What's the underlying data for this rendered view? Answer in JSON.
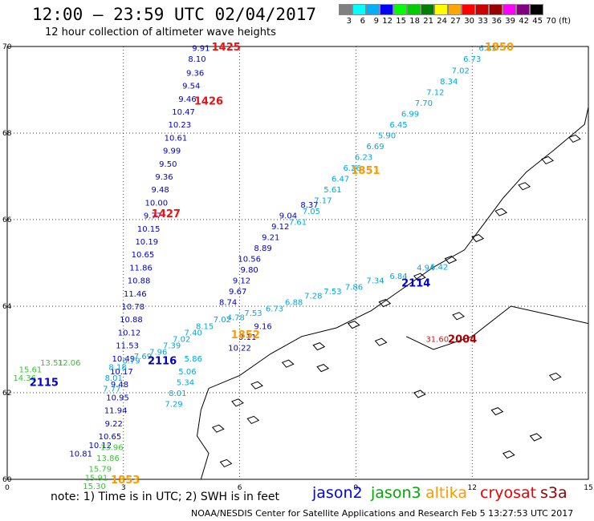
{
  "header": {
    "title": "12:00 – 23:59 UTC 02/04/2017",
    "subtitle": "12 hour collection of altimeter wave heights"
  },
  "colorbar": {
    "colors": [
      "#808080",
      "#00ffff",
      "#00b0ff",
      "#0000ff",
      "#00ff00",
      "#00cc00",
      "#008000",
      "#ffff00",
      "#ffa500",
      "#ff0000",
      "#cc0000",
      "#990000",
      "#ff00ff",
      "#800080",
      "#000000"
    ],
    "labels": [
      "3",
      "6",
      "9",
      "12",
      "15",
      "18",
      "21",
      "24",
      "27",
      "30",
      "33",
      "36",
      "39",
      "42",
      "45",
      "70"
    ],
    "unit": "(ft)"
  },
  "axes": {
    "lon_ticks": [
      "0",
      "3",
      "6",
      "9",
      "12",
      "15"
    ],
    "lat_ticks": [
      "60",
      "62",
      "64",
      "66",
      "68",
      "70"
    ]
  },
  "tracks": [
    {
      "color": "#0000cc",
      "points": [
        {
          "lon": 5.0,
          "lat": 69.97,
          "v": "9.91"
        },
        {
          "lon": 4.9,
          "lat": 69.72,
          "v": "8.10"
        },
        {
          "lon": 4.85,
          "lat": 69.4,
          "v": "9.36"
        },
        {
          "lon": 4.75,
          "lat": 69.1,
          "v": "9.54"
        },
        {
          "lon": 4.65,
          "lat": 68.8,
          "v": "9.46"
        },
        {
          "lon": 4.55,
          "lat": 68.5,
          "v": "10.47"
        },
        {
          "lon": 4.45,
          "lat": 68.2,
          "v": "10.23"
        },
        {
          "lon": 4.35,
          "lat": 67.9,
          "v": "10.61"
        },
        {
          "lon": 4.25,
          "lat": 67.6,
          "v": "9.99"
        },
        {
          "lon": 4.15,
          "lat": 67.3,
          "v": "9.50"
        },
        {
          "lon": 4.05,
          "lat": 67.0,
          "v": "9.36"
        },
        {
          "lon": 3.95,
          "lat": 66.7,
          "v": "9.48"
        },
        {
          "lon": 3.85,
          "lat": 66.4,
          "v": "10.00"
        },
        {
          "lon": 3.75,
          "lat": 66.1,
          "v": "9.77"
        },
        {
          "lon": 3.65,
          "lat": 65.8,
          "v": "10.15"
        },
        {
          "lon": 3.6,
          "lat": 65.5,
          "v": "10.19"
        },
        {
          "lon": 3.5,
          "lat": 65.2,
          "v": "10.65"
        },
        {
          "lon": 3.45,
          "lat": 64.9,
          "v": "11.86"
        },
        {
          "lon": 3.4,
          "lat": 64.6,
          "v": "10.88"
        },
        {
          "lon": 3.3,
          "lat": 64.3,
          "v": "11.46"
        },
        {
          "lon": 3.25,
          "lat": 64.0,
          "v": "10.78"
        },
        {
          "lon": 3.2,
          "lat": 63.7,
          "v": "10.88"
        },
        {
          "lon": 3.15,
          "lat": 63.4,
          "v": "10.12"
        },
        {
          "lon": 3.1,
          "lat": 63.1,
          "v": "11.53"
        },
        {
          "lon": 3.0,
          "lat": 62.8,
          "v": "10.49"
        },
        {
          "lon": 2.95,
          "lat": 62.5,
          "v": "10.17"
        },
        {
          "lon": 2.9,
          "lat": 62.2,
          "v": "9.48"
        },
        {
          "lon": 2.85,
          "lat": 61.9,
          "v": "10.95"
        },
        {
          "lon": 2.8,
          "lat": 61.6,
          "v": "11.94"
        },
        {
          "lon": 2.75,
          "lat": 61.3,
          "v": "9.22"
        },
        {
          "lon": 2.65,
          "lat": 61.0,
          "v": "10.65"
        },
        {
          "lon": 2.4,
          "lat": 60.8,
          "v": "10.12"
        },
        {
          "lon": 1.9,
          "lat": 60.6,
          "v": "10.81"
        }
      ]
    },
    {
      "color": "#0000cc",
      "points": [
        {
          "lon": 5.7,
          "lat": 64.1,
          "v": "8.74"
        },
        {
          "lon": 5.95,
          "lat": 64.35,
          "v": "9.67"
        },
        {
          "lon": 6.05,
          "lat": 64.6,
          "v": "9.12"
        },
        {
          "lon": 6.25,
          "lat": 64.85,
          "v": "9.80"
        },
        {
          "lon": 6.25,
          "lat": 65.1,
          "v": "10.56"
        },
        {
          "lon": 6.6,
          "lat": 65.35,
          "v": "8.89"
        },
        {
          "lon": 6.8,
          "lat": 65.6,
          "v": "9.21"
        },
        {
          "lon": 7.05,
          "lat": 65.85,
          "v": "9.12"
        },
        {
          "lon": 7.25,
          "lat": 66.1,
          "v": "9.04"
        },
        {
          "lon": 7.8,
          "lat": 66.35,
          "v": "8.37"
        },
        {
          "lon": 6.6,
          "lat": 63.55,
          "v": "9.16"
        },
        {
          "lon": 6.2,
          "lat": 63.3,
          "v": "9.11"
        },
        {
          "lon": 6.0,
          "lat": 63.05,
          "v": "10.22"
        }
      ]
    },
    {
      "color": "#00a8e0",
      "points": [
        {
          "lon": 12.4,
          "lat": 69.97,
          "v": "6.83"
        },
        {
          "lon": 12.0,
          "lat": 69.72,
          "v": "6.73"
        },
        {
          "lon": 11.7,
          "lat": 69.45,
          "v": "7.02"
        },
        {
          "lon": 11.4,
          "lat": 69.2,
          "v": "8.34"
        },
        {
          "lon": 11.05,
          "lat": 68.95,
          "v": "7.12"
        },
        {
          "lon": 10.75,
          "lat": 68.7,
          "v": "7.70"
        },
        {
          "lon": 10.4,
          "lat": 68.45,
          "v": "6.99"
        },
        {
          "lon": 10.1,
          "lat": 68.2,
          "v": "6.45"
        },
        {
          "lon": 9.8,
          "lat": 67.95,
          "v": "5.90"
        },
        {
          "lon": 9.5,
          "lat": 67.7,
          "v": "6.69"
        },
        {
          "lon": 9.2,
          "lat": 67.45,
          "v": "6.23"
        },
        {
          "lon": 8.9,
          "lat": 67.2,
          "v": "6.26"
        },
        {
          "lon": 8.6,
          "lat": 66.95,
          "v": "6.47"
        },
        {
          "lon": 8.4,
          "lat": 66.7,
          "v": "5.61"
        },
        {
          "lon": 8.15,
          "lat": 66.45,
          "v": "7.17"
        },
        {
          "lon": 7.85,
          "lat": 66.2,
          "v": "7.05"
        },
        {
          "lon": 7.5,
          "lat": 65.95,
          "v": "7.61"
        },
        {
          "lon": 10.8,
          "lat": 64.9,
          "v": "4.94"
        },
        {
          "lon": 11.15,
          "lat": 64.92,
          "v": "6.42"
        },
        {
          "lon": 10.1,
          "lat": 64.7,
          "v": "6.84"
        },
        {
          "lon": 9.5,
          "lat": 64.6,
          "v": "7.34"
        },
        {
          "lon": 8.95,
          "lat": 64.45,
          "v": "7.86"
        },
        {
          "lon": 8.4,
          "lat": 64.35,
          "v": "7.53"
        },
        {
          "lon": 7.9,
          "lat": 64.25,
          "v": "7.28"
        },
        {
          "lon": 7.4,
          "lat": 64.1,
          "v": "6.88"
        },
        {
          "lon": 6.9,
          "lat": 63.95,
          "v": "6.73"
        },
        {
          "lon": 6.35,
          "lat": 63.85,
          "v": "7.53"
        },
        {
          "lon": 5.9,
          "lat": 63.75,
          "v": "4.78"
        },
        {
          "lon": 5.55,
          "lat": 63.7,
          "v": "7.02"
        },
        {
          "lon": 5.1,
          "lat": 63.55,
          "v": "8.15"
        },
        {
          "lon": 4.8,
          "lat": 63.4,
          "v": "7.40"
        },
        {
          "lon": 4.5,
          "lat": 63.25,
          "v": "7.02"
        },
        {
          "lon": 4.25,
          "lat": 63.1,
          "v": "7.39"
        },
        {
          "lon": 3.9,
          "lat": 62.95,
          "v": "7.96"
        },
        {
          "lon": 3.5,
          "lat": 62.85,
          "v": "7.69"
        },
        {
          "lon": 3.2,
          "lat": 62.75,
          "v": "6.79"
        },
        {
          "lon": 4.8,
          "lat": 62.8,
          "v": "5.86"
        },
        {
          "lon": 4.65,
          "lat": 62.5,
          "v": "5.06"
        },
        {
          "lon": 4.6,
          "lat": 62.25,
          "v": "5.34"
        },
        {
          "lon": 4.4,
          "lat": 62.0,
          "v": "8.01"
        },
        {
          "lon": 4.3,
          "lat": 61.75,
          "v": "7.29"
        },
        {
          "lon": 2.75,
          "lat": 62.35,
          "v": "8.01"
        },
        {
          "lon": 2.7,
          "lat": 62.1,
          "v": "7.77"
        },
        {
          "lon": 2.85,
          "lat": 62.6,
          "v": "8.18"
        }
      ]
    },
    {
      "color": "#30c830",
      "points": [
        {
          "lon": 2.7,
          "lat": 60.75,
          "v": "13.96"
        },
        {
          "lon": 2.6,
          "lat": 60.5,
          "v": "13.86"
        },
        {
          "lon": 2.4,
          "lat": 60.25,
          "v": "15.79"
        },
        {
          "lon": 2.3,
          "lat": 60.05,
          "v": "15.91"
        },
        {
          "lon": 2.25,
          "lat": 59.85,
          "v": "15.30"
        },
        {
          "lon": 0.6,
          "lat": 62.55,
          "v": "15.61"
        },
        {
          "lon": 1.15,
          "lat": 62.7,
          "v": "13.51"
        },
        {
          "lon": 1.6,
          "lat": 62.7,
          "v": "12.06"
        },
        {
          "lon": 0.45,
          "lat": 62.35,
          "v": "14.36"
        }
      ]
    }
  ],
  "pass_times": [
    {
      "lon": 5.65,
      "lat": 70.0,
      "v": "1425",
      "color": "#ee1111"
    },
    {
      "lon": 5.2,
      "lat": 68.75,
      "v": "1426",
      "color": "#ee1111"
    },
    {
      "lon": 4.1,
      "lat": 66.15,
      "v": "1427",
      "color": "#ee1111"
    },
    {
      "lon": 12.7,
      "lat": 70.0,
      "v": "1850",
      "color": "#ff9900"
    },
    {
      "lon": 9.25,
      "lat": 67.15,
      "v": "1851",
      "color": "#ff9900"
    },
    {
      "lon": 6.15,
      "lat": 63.35,
      "v": "1852",
      "color": "#ff9900"
    },
    {
      "lon": 3.05,
      "lat": 60.0,
      "v": "1853",
      "color": "#ff9900"
    },
    {
      "lon": 10.55,
      "lat": 64.55,
      "v": "2114",
      "color": "#0000cc"
    },
    {
      "lon": 4.0,
      "lat": 62.75,
      "v": "2116",
      "color": "#0000cc"
    },
    {
      "lon": 0.95,
      "lat": 62.25,
      "v": "2115",
      "color": "#0000cc"
    },
    {
      "lon": 11.75,
      "lat": 63.25,
      "v": "2004",
      "color": "#aa0000"
    }
  ],
  "cryosat_points": [
    {
      "lon": 11.1,
      "lat": 63.25,
      "v": "31.60",
      "color": "#cc2222"
    }
  ],
  "footer": {
    "note": "note: 1) Time is in UTC; 2) SWH is in feet",
    "satellites": [
      {
        "name": "jason2",
        "color": "#0000ff"
      },
      {
        "name": "jason3",
        "color": "#00aa00"
      },
      {
        "name": "altika",
        "color": "#ff9900"
      },
      {
        "name": "cryosat",
        "color": "#ee0000"
      },
      {
        "name": "s3a",
        "color": "#990000"
      }
    ],
    "credit": "NOAA/NESDIS Center for Satellite Applications and Research    Feb  5 13:27:53 UTC 2017"
  }
}
